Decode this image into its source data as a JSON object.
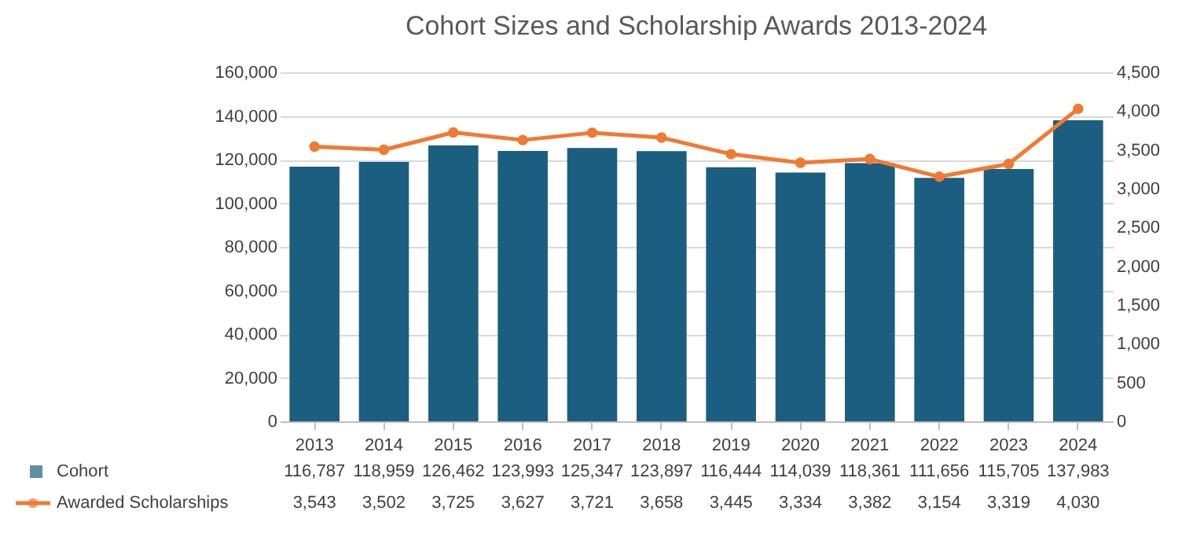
{
  "chart_data": {
    "type": "bar",
    "title": "Cohort Sizes and Scholarship Awards 2013-2024",
    "categories": [
      "2013",
      "2014",
      "2015",
      "2016",
      "2017",
      "2018",
      "2019",
      "2020",
      "2021",
      "2022",
      "2023",
      "2024"
    ],
    "series": [
      {
        "name": "Cohort",
        "color": "#1b5e80",
        "values": [
          116787,
          118959,
          126462,
          123993,
          125347,
          123897,
          116444,
          114039,
          118361,
          111656,
          115705,
          137983
        ],
        "value_labels": [
          "116,787",
          "118,959",
          "126,462",
          "123,993",
          "125,347",
          "123,897",
          "116,444",
          "114,039",
          "118,361",
          "111,656",
          "115,705",
          "137,983"
        ]
      },
      {
        "name": "Awarded Scholarships",
        "type": "line",
        "axis": "y2",
        "color": "#f07a32",
        "values": [
          3543,
          3502,
          3725,
          3627,
          3721,
          3658,
          3445,
          3334,
          3382,
          3154,
          3319,
          4030
        ],
        "value_labels": [
          "3,543",
          "3,502",
          "3,725",
          "3,627",
          "3,721",
          "3,658",
          "3,445",
          "3,334",
          "3,382",
          "3,154",
          "3,319",
          "4,030"
        ]
      }
    ],
    "ylim": [
      0,
      160000
    ],
    "yticks": [
      0,
      {
        "value": 20000,
        "label": "20,000"
      },
      {
        "value": 40000,
        "label": "40,000"
      },
      {
        "value": 60000,
        "label": "60,000"
      },
      {
        "value": 80000,
        "label": "80,000"
      },
      {
        "value": 100000,
        "label": "100,000"
      },
      {
        "value": 120000,
        "label": "120,000"
      },
      {
        "value": 140000,
        "label": "140,000"
      },
      {
        "value": 160000,
        "label": "160,000"
      }
    ],
    "y2lim": [
      0,
      4500
    ],
    "y2ticks": [
      0,
      500,
      {
        "value": 1000,
        "label": "1,000"
      },
      {
        "value": 1500,
        "label": "1,500"
      },
      {
        "value": 2000,
        "label": "2,000"
      },
      {
        "value": 2500,
        "label": "2,500"
      },
      {
        "value": 3000,
        "label": "3,000"
      },
      {
        "value": 3500,
        "label": "3,500"
      },
      {
        "value": 4000,
        "label": "4,000"
      },
      {
        "value": 4500,
        "label": "4,500"
      }
    ],
    "grid": "y",
    "legend": "bottom",
    "marker": "circle"
  }
}
